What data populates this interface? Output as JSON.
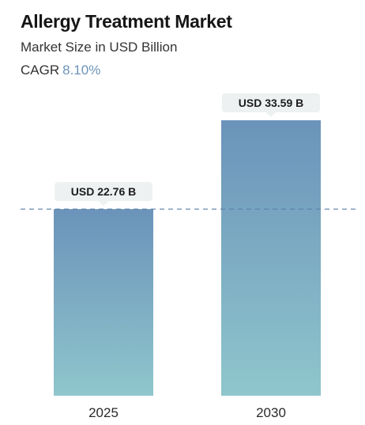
{
  "header": {
    "title": "Allergy Treatment Market",
    "subtitle": "Market Size in USD Billion",
    "cagr_label": "CAGR",
    "cagr_value": "8.10%"
  },
  "colors": {
    "bar_top": "#6b93ba",
    "bar_bottom": "#8fc6cc",
    "label_bg": "#eef1f1",
    "reference_line": "#5b7fa6"
  },
  "chart_data": {
    "type": "bar",
    "categories": [
      "2025",
      "2030"
    ],
    "values": [
      22.76,
      33.59
    ],
    "data_labels": [
      "USD 22.76 B",
      "USD 33.59 B"
    ],
    "ylim": [
      0,
      36
    ],
    "grid": false,
    "reference_line": 22.76
  }
}
